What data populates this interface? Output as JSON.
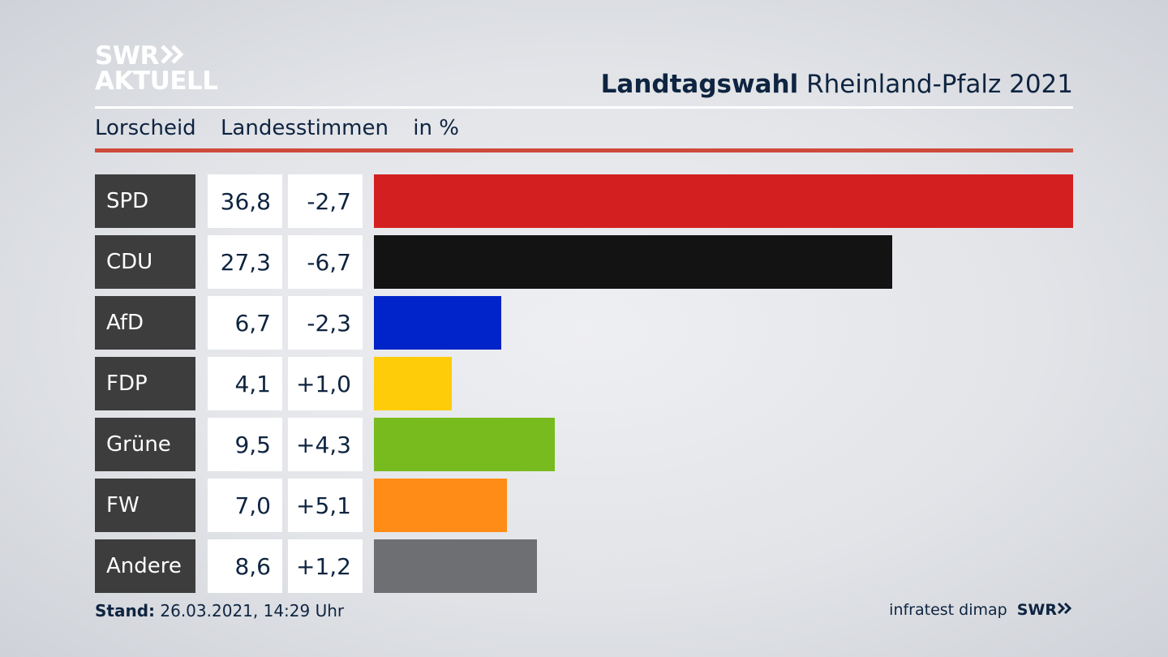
{
  "logo": {
    "line1": "SWR",
    "line2": "AKTUELL"
  },
  "headline": {
    "bold": "Landtagswahl",
    "regular": "Rheinland-Pfalz 2021"
  },
  "subtitle": {
    "place": "Lorscheid",
    "measure": "Landesstimmen",
    "unit": "in %"
  },
  "chart_data": {
    "type": "bar",
    "orientation": "horizontal",
    "title": "Landtagswahl Rheinland-Pfalz 2021",
    "subtitle": "Lorscheid Landesstimmen in %",
    "categories": [
      "SPD",
      "CDU",
      "AfD",
      "FDP",
      "Grüne",
      "FW",
      "Andere"
    ],
    "values": [
      36.8,
      27.3,
      6.7,
      4.1,
      9.5,
      7.0,
      8.6
    ],
    "value_labels": [
      "36,8",
      "27,3",
      "6,7",
      "4,1",
      "9,5",
      "7,0",
      "8,6"
    ],
    "change_labels": [
      "-2,7",
      "-6,7",
      "-2,3",
      "+1,0",
      "+4,3",
      "+5,1",
      "+1,2"
    ],
    "changes": [
      -2.7,
      -6.7,
      -2.3,
      1.0,
      4.3,
      5.1,
      1.2
    ],
    "colors": [
      "#d41f20",
      "#131313",
      "#0024c9",
      "#ffcc0a",
      "#77bb1e",
      "#ff8c17",
      "#6e6f72"
    ],
    "xlim": [
      0,
      36.8
    ],
    "grid": false
  },
  "footer": {
    "stand_label": "Stand:",
    "stand_value": "26.03.2021, 14:29 Uhr",
    "source": "infratest dimap",
    "brand": "SWR"
  }
}
